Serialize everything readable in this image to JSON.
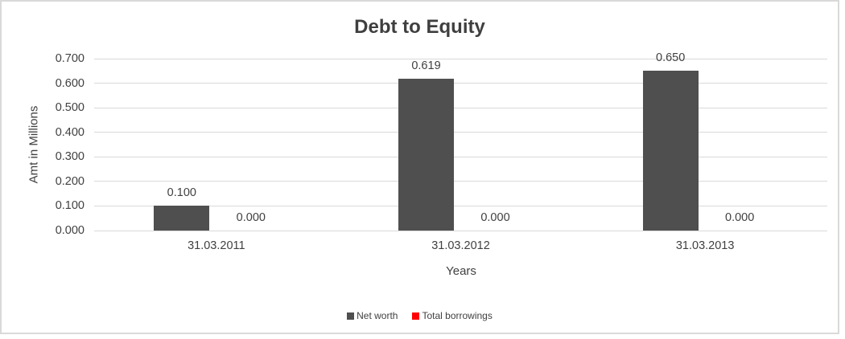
{
  "chart_data": {
    "type": "bar",
    "title": "Debt to Equity",
    "xlabel": "Years",
    "ylabel": "Amt in Millions",
    "categories": [
      "31.03.2011",
      "31.03.2012",
      "31.03.2013"
    ],
    "series": [
      {
        "name": "Net worth",
        "color": "#4f4f4f",
        "values": [
          0.1,
          0.619,
          0.65
        ],
        "data_labels": [
          "0.100",
          "0.619",
          "0.650"
        ]
      },
      {
        "name": "Total borrowings",
        "color": "#ff0000",
        "values": [
          0.0,
          0.0,
          0.0
        ],
        "data_labels": [
          "0.000",
          "0.000",
          "0.000"
        ]
      }
    ],
    "ylim": [
      0.0,
      0.7
    ],
    "ytick_step": 0.1,
    "yticks": [
      "0.000",
      "0.100",
      "0.200",
      "0.300",
      "0.400",
      "0.500",
      "0.600",
      "0.700"
    ],
    "grid": true,
    "legend_position": "bottom",
    "colors": {
      "grid": "#d9d9d9",
      "text": "#404040",
      "title_text": "#3f3f3f",
      "frame_border": "#d9d9d9",
      "background": "#ffffff"
    }
  }
}
